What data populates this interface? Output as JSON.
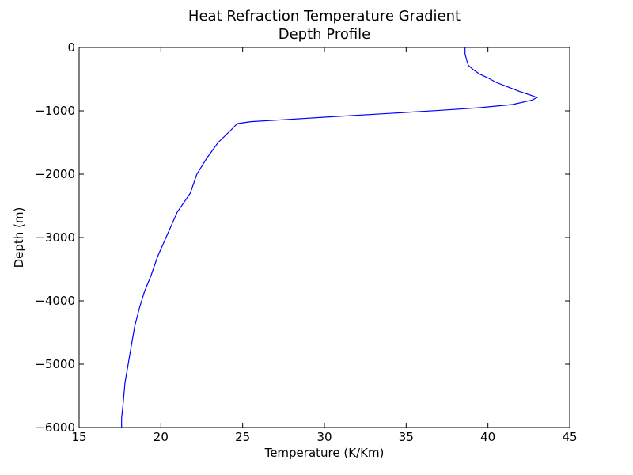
{
  "chart_data": {
    "type": "line",
    "title": [
      "Heat Refraction Temperature Gradient",
      "Depth Profile"
    ],
    "xlabel": "Temperature (K/Km)",
    "ylabel": "Depth (m)",
    "xlim": [
      15,
      45
    ],
    "ylim": [
      -6000,
      0
    ],
    "xticks": [
      "15",
      "20",
      "25",
      "30",
      "35",
      "40",
      "45"
    ],
    "yticks": [
      "0",
      "−1000",
      "−2000",
      "−3000",
      "−4000",
      "−5000",
      "−6000"
    ],
    "grid": false,
    "line_color": "#0000ff",
    "series": [
      {
        "x": [
          38.6,
          38.6,
          38.7,
          38.8,
          39.1,
          39.5,
          40.0,
          40.5,
          41.3,
          42.0,
          42.7,
          43.0,
          42.7,
          41.5,
          39.5,
          37.2,
          34.0,
          30.0,
          27.5,
          25.5,
          24.7,
          24.6,
          24.3,
          23.5,
          22.8,
          22.2,
          21.8,
          21.0,
          20.4,
          19.8,
          19.4,
          19.0,
          18.7,
          18.4,
          18.2,
          18.0,
          17.8,
          17.7,
          17.6,
          17.6
        ],
        "y": [
          0,
          -100,
          -200,
          -280,
          -350,
          -420,
          -480,
          -550,
          -630,
          -700,
          -760,
          -790,
          -830,
          -900,
          -950,
          -990,
          -1040,
          -1100,
          -1140,
          -1170,
          -1200,
          -1220,
          -1300,
          -1500,
          -1750,
          -2000,
          -2300,
          -2600,
          -2950,
          -3300,
          -3600,
          -3850,
          -4100,
          -4400,
          -4700,
          -5000,
          -5300,
          -5600,
          -5850,
          -6000
        ]
      }
    ]
  }
}
